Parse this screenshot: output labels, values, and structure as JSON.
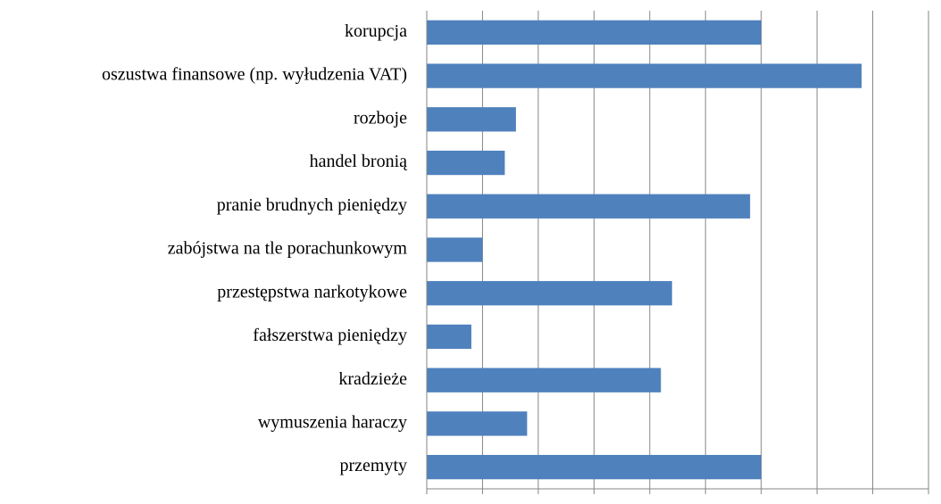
{
  "chart_data": {
    "type": "bar",
    "orientation": "horizontal",
    "categories": [
      "korupcja",
      "oszustwa finansowe (np. wyłudzenia VAT)",
      "rozboje",
      "handel bronią",
      "pranie brudnych pieniędzy",
      "zabójstwa na tle porachunkowym",
      "przestępstwa narkotykowe",
      "fałszerstwa pieniędzy",
      "kradzieże",
      "wymuszenia haraczy",
      "przemyty"
    ],
    "values": [
      30,
      39,
      8,
      7,
      29,
      5,
      22,
      4,
      21,
      9,
      30
    ],
    "color": "#4f81bd",
    "xlim": [
      0,
      45
    ],
    "xticks": [
      0,
      5,
      10,
      15,
      20,
      25,
      30,
      35,
      40,
      45
    ],
    "grid": true
  }
}
